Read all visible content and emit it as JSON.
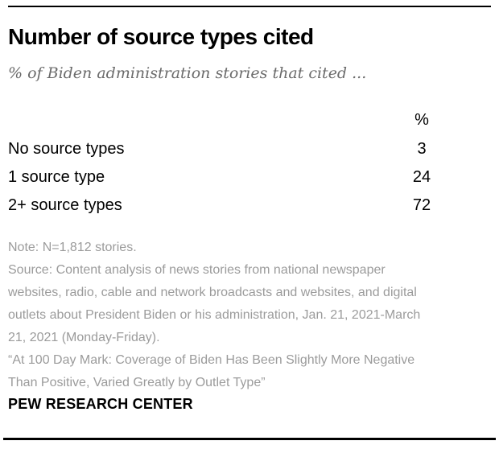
{
  "header": {
    "title": "Number of source types cited",
    "subtitle": "% of Biden administration stories that cited ..."
  },
  "table": {
    "value_header": "%",
    "rows": [
      {
        "label": "No source types",
        "value": "3"
      },
      {
        "label": "1 source type",
        "value": "24"
      },
      {
        "label": "2+ source types",
        "value": "72"
      }
    ]
  },
  "notes": {
    "note": "Note: N=1,812 stories.",
    "source": "Source: Content analysis of news stories from national newspaper websites, radio, cable and network broadcasts and websites, and digital outlets about President Biden or his administration, Jan. 21, 2021-March 21, 2021 (Monday-Friday).",
    "report": "“At 100 Day Mark: Coverage of Biden Has Been Slightly More Negative Than Positive, Varied Greatly by Outlet Type”"
  },
  "footer": {
    "brand": "PEW RESEARCH CENTER"
  },
  "colors": {
    "text_black": "#000000",
    "subtitle_gray": "#6b6b6b",
    "note_gray": "#9b9b9b",
    "rule": "#000000"
  },
  "chart_data": {
    "type": "table",
    "title": "Number of source types cited",
    "subtitle": "% of Biden administration stories that cited ...",
    "columns": [
      "",
      "%"
    ],
    "categories": [
      "No source types",
      "1 source type",
      "2+ source types"
    ],
    "values": [
      3,
      24,
      72
    ],
    "units": "percent",
    "notes": "Note: N=1,812 stories.",
    "source": "Content analysis of news stories from national newspaper websites, radio, cable and network broadcasts and websites, and digital outlets about President Biden or his administration, Jan. 21, 2021-March 21, 2021 (Monday-Friday)."
  }
}
